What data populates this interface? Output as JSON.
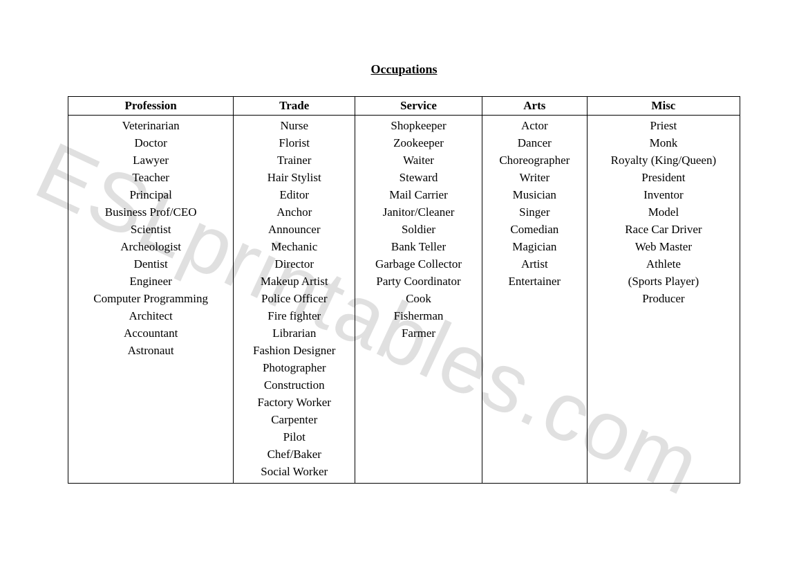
{
  "title": "Occupations",
  "watermark_text": "ESLprintables.com",
  "table": {
    "columns": [
      "Profession",
      "Trade",
      "Service",
      "Arts",
      "Misc"
    ],
    "data": {
      "Profession": [
        "Veterinarian",
        "Doctor",
        "Lawyer",
        "Teacher",
        "Principal",
        "Business Prof/CEO",
        "Scientist",
        "Archeologist",
        "Dentist",
        "Engineer",
        "Computer Programming",
        "Architect",
        "Accountant",
        "Astronaut"
      ],
      "Trade": [
        "Nurse",
        "Florist",
        "Trainer",
        "Hair Stylist",
        "Editor",
        "Anchor",
        "Announcer",
        "Mechanic",
        "Director",
        "Makeup Artist",
        "Police Officer",
        "Fire fighter",
        "Librarian",
        "Fashion Designer",
        "Photographer",
        "Construction",
        "Factory Worker",
        "Carpenter",
        "Pilot",
        "Chef/Baker",
        "Social Worker"
      ],
      "Service": [
        "Shopkeeper",
        "Zookeeper",
        "Waiter",
        "Steward",
        "Mail Carrier",
        "Janitor/Cleaner",
        "Soldier",
        "Bank Teller",
        "Garbage Collector",
        "Party Coordinator",
        "Cook",
        "Fisherman",
        "Farmer"
      ],
      "Arts": [
        "Actor",
        "Dancer",
        "Choreographer",
        "Writer",
        "Musician",
        "Singer",
        "Comedian",
        "Magician",
        "Artist",
        "Entertainer"
      ],
      "Misc": [
        "Priest",
        "Monk",
        "Royalty (King/Queen)",
        "President",
        "Inventor",
        "Model",
        "Race Car Driver",
        "Web Master",
        "Athlete",
        "(Sports Player)",
        "Producer"
      ]
    }
  },
  "style": {
    "background_color": "#ffffff",
    "text_color": "#000000",
    "border_color": "#000000",
    "font_family": "Times New Roman",
    "base_fontsize": 17,
    "title_fontsize": 18,
    "watermark_color": "rgba(0,0,0,0.12)",
    "watermark_fontsize": 120,
    "watermark_rotation_deg": 25
  }
}
